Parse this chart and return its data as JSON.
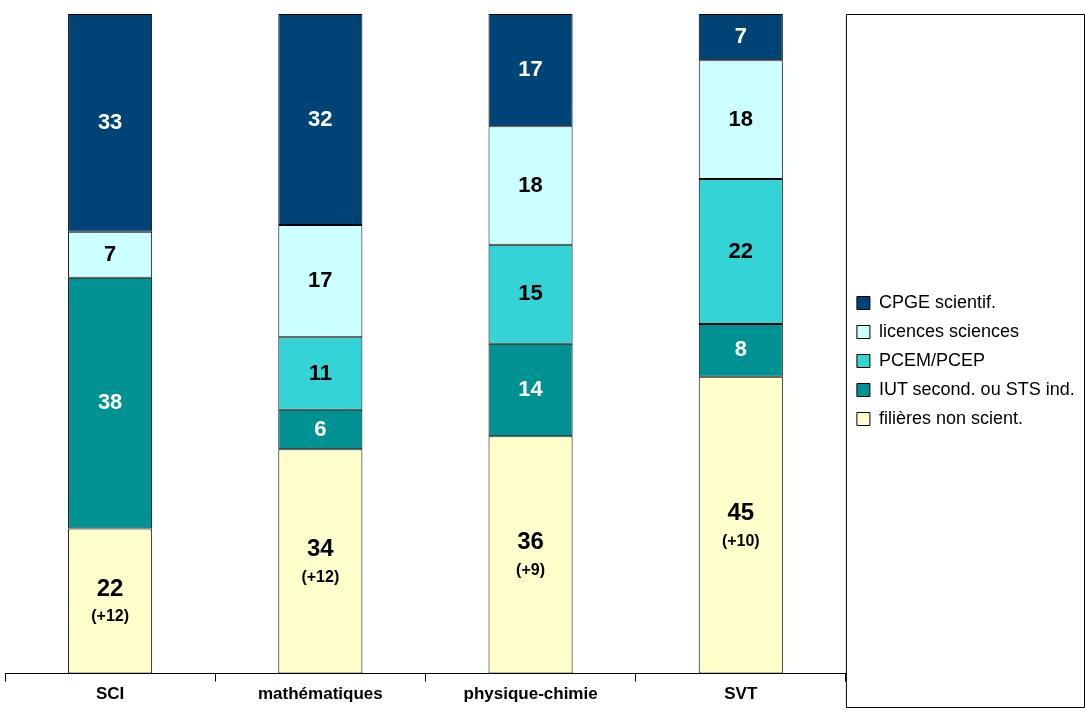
{
  "chart_data": {
    "type": "bar",
    "stacked": true,
    "legend": "right",
    "categories": [
      "SCI",
      "mathématiques",
      "physique-chimie",
      "SVT"
    ],
    "series": [
      {
        "name": "filières non scient.",
        "color": "#ffffcc",
        "values": [
          22,
          34,
          36,
          45
        ],
        "value_labels": [
          "22\n(+12)",
          "34\n(+12)",
          "36\n(+9)",
          "45\n(+10)"
        ]
      },
      {
        "name": "IUT second. ou STS ind.",
        "color": "#009292",
        "values": [
          38,
          6,
          14,
          8
        ],
        "value_labels": [
          "38",
          "6",
          "14",
          "8"
        ]
      },
      {
        "name": "PCEM/PCEP",
        "color": "#33d3d6",
        "values": [
          0,
          11,
          15,
          22
        ],
        "value_labels": [
          null,
          "11",
          "15",
          "22"
        ]
      },
      {
        "name": "licences sciences",
        "color": "#ccffff",
        "values": [
          7,
          17,
          18,
          18
        ],
        "value_labels": [
          "7",
          "17",
          "18",
          "18"
        ]
      },
      {
        "name": "CPGE scientif.",
        "color": "#004477",
        "values": [
          33,
          32,
          17,
          7
        ],
        "value_labels": [
          "33",
          "32",
          "17",
          "7"
        ]
      }
    ]
  }
}
